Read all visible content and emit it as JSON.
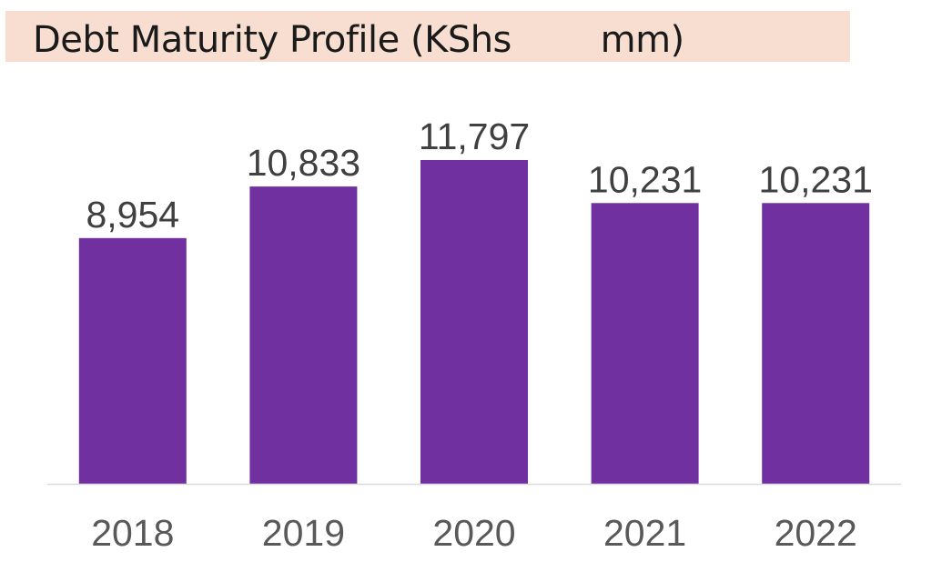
{
  "chart_data": {
    "type": "bar",
    "title": "Debt Maturity Profile (KShs        mm)",
    "categories": [
      "2018",
      "2019",
      "2020",
      "2021",
      "2022"
    ],
    "values": [
      8954,
      10833,
      11797,
      10231,
      10231
    ],
    "data_labels": [
      "8,954",
      "10,833",
      "11,797",
      "10,231",
      "10,231"
    ],
    "xlabel": "",
    "ylabel": "",
    "ylim": [
      0,
      16000
    ],
    "grid": false,
    "bar_color": "#7030a0",
    "title_background": "#f8ded0",
    "baseline_color": "#d9d9d9"
  }
}
